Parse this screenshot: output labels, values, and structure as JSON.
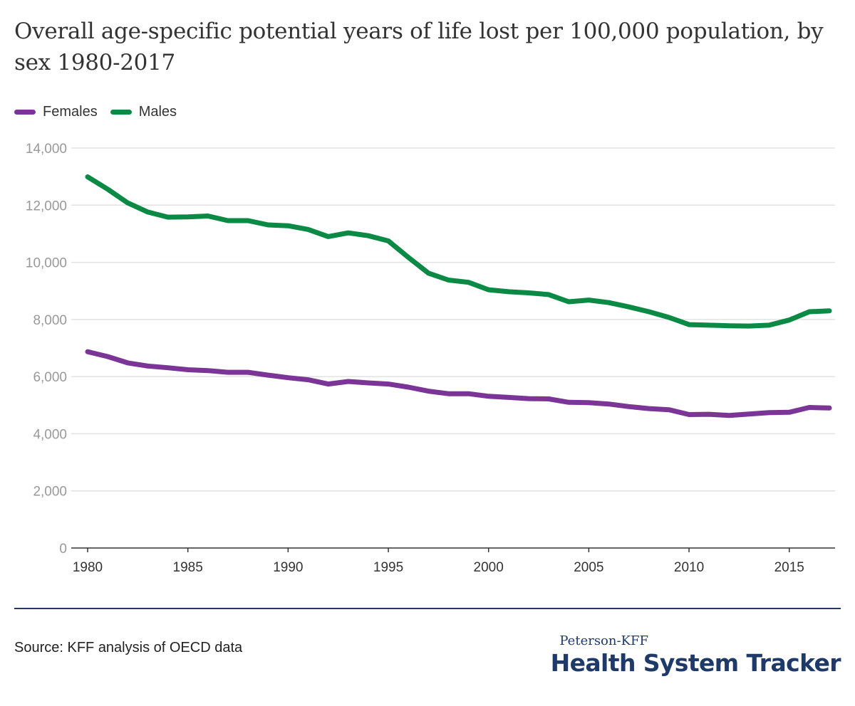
{
  "header": {
    "title": "Overall age-specific potential years of life lost per 100,000 population, by sex 1980-2017"
  },
  "legend": [
    {
      "label": "Females",
      "color": "#7b3596"
    },
    {
      "label": "Males",
      "color": "#0a8a45"
    }
  ],
  "footer": {
    "source": "Source: KFF analysis of OECD data",
    "brand_small": "Peterson-KFF",
    "brand_big": "Health System Tracker"
  },
  "chart_data": {
    "type": "line",
    "title": "Overall age-specific potential years of life lost per 100,000 population, by sex 1980-2017",
    "xlabel": "",
    "ylabel": "",
    "ylim": [
      0,
      14000
    ],
    "yticks": [
      0,
      2000,
      4000,
      6000,
      8000,
      10000,
      12000,
      14000
    ],
    "yticklabels": [
      "0",
      "2,000",
      "4,000",
      "6,000",
      "8,000",
      "10,000",
      "12,000",
      "14,000"
    ],
    "xlim": [
      1980,
      2017
    ],
    "xticks": [
      1980,
      1985,
      1990,
      1995,
      2000,
      2005,
      2010,
      2015
    ],
    "grid": true,
    "legend_position": "top-left",
    "x": [
      1980,
      1981,
      1982,
      1983,
      1984,
      1985,
      1986,
      1987,
      1988,
      1989,
      1990,
      1991,
      1992,
      1993,
      1994,
      1995,
      1996,
      1997,
      1998,
      1999,
      2000,
      2001,
      2002,
      2003,
      2004,
      2005,
      2006,
      2007,
      2008,
      2009,
      2010,
      2011,
      2012,
      2013,
      2014,
      2015,
      2016,
      2017
    ],
    "series": [
      {
        "name": "Females",
        "color": "#7b3596",
        "values": [
          6870,
          6700,
          6480,
          6370,
          6310,
          6240,
          6210,
          6150,
          6150,
          6050,
          5960,
          5890,
          5740,
          5830,
          5780,
          5740,
          5630,
          5490,
          5400,
          5400,
          5310,
          5270,
          5230,
          5220,
          5100,
          5090,
          5040,
          4950,
          4880,
          4840,
          4670,
          4680,
          4640,
          4690,
          4740,
          4750,
          4920,
          4900
        ]
      },
      {
        "name": "Males",
        "color": "#0a8a45",
        "values": [
          12990,
          12560,
          12080,
          11760,
          11580,
          11590,
          11620,
          11460,
          11460,
          11310,
          11280,
          11150,
          10900,
          11030,
          10930,
          10750,
          10170,
          9620,
          9380,
          9300,
          9040,
          8970,
          8930,
          8870,
          8620,
          8680,
          8590,
          8440,
          8270,
          8070,
          7820,
          7800,
          7780,
          7770,
          7800,
          7980,
          8270,
          8300
        ]
      }
    ]
  }
}
